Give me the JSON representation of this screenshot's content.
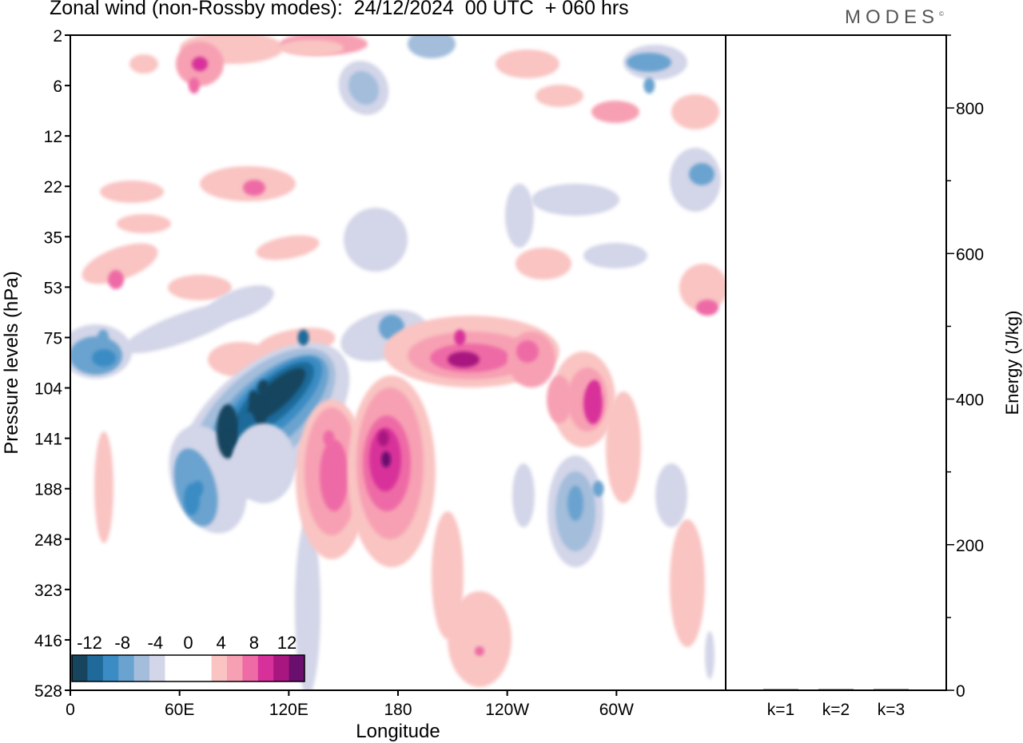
{
  "header": {
    "title": "Zonal wind (non-Rossby modes):  24/12/2024  00 UTC  + 060 hrs",
    "brand": "MODES",
    "brand_mark": "©"
  },
  "colors": {
    "neg": [
      "#17455e",
      "#1f6a9a",
      "#3b8cc4",
      "#6aa3cf",
      "#a3bddb",
      "#d3d5e8"
    ],
    "zero": "#ffffff",
    "pos": [
      "#f9c4c2",
      "#f7a0b3",
      "#ee6ba6",
      "#d8309a",
      "#a8167f",
      "#6b0f6f"
    ]
  },
  "chart_data": [
    {
      "type": "heatmap",
      "title": "Zonal wind (non-Rossby modes):  24/12/2024  00 UTC  + 060 hrs",
      "xlabel": "Longitude",
      "ylabel": "Pressure levels (hPa)",
      "xticks": [
        "0",
        "60E",
        "120E",
        "180",
        "120W",
        "60W"
      ],
      "xlim": [
        0,
        360
      ],
      "yticks": [
        "2",
        "6",
        "12",
        "22",
        "35",
        "53",
        "75",
        "104",
        "141",
        "188",
        "248",
        "323",
        "416",
        "528"
      ],
      "colorbar": {
        "labels": [
          "-12",
          "-8",
          "-4",
          "0",
          "4",
          "8",
          "12"
        ],
        "levels": [
          -14,
          -12,
          -10,
          -8,
          -6,
          -4,
          -2,
          2,
          4,
          6,
          8,
          10,
          12,
          14
        ]
      },
      "features": [
        {
          "lon": 106,
          "level": "104",
          "value": -14
        },
        {
          "lon": 88,
          "level": "141",
          "value": -12
        },
        {
          "lon": 70,
          "level": "188",
          "value": -8
        },
        {
          "lon": 18,
          "level": "75",
          "value": -6
        },
        {
          "lon": 128,
          "level": "75",
          "value": -10
        },
        {
          "lon": 172,
          "level": "141",
          "value": 10
        },
        {
          "lon": 142,
          "level": "141",
          "value": 6
        },
        {
          "lon": 214,
          "level": "75",
          "value": 8
        },
        {
          "lon": 288,
          "level": "104",
          "value": 8
        },
        {
          "lon": 290,
          "level": "188",
          "value": -6
        },
        {
          "lon": 318,
          "level": "6",
          "value": -6
        },
        {
          "lon": 68,
          "level": "6",
          "value": 6
        }
      ]
    },
    {
      "type": "bar",
      "categories": [
        "k=1",
        "k=2",
        "k=3"
      ],
      "values": [
        0.4,
        0.4,
        0.4
      ],
      "ylabel": "Energy (J/kg)",
      "ylim": [
        0,
        900
      ],
      "yticks": [
        0,
        200,
        400,
        600,
        800
      ]
    }
  ]
}
